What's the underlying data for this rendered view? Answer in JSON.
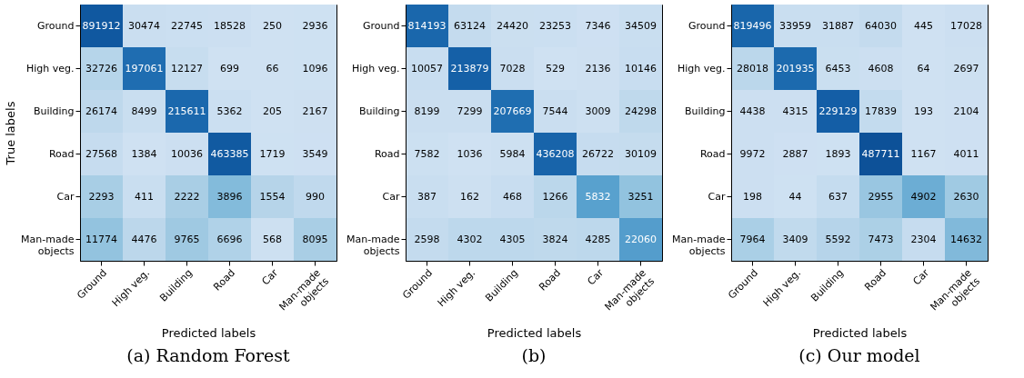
{
  "chart_data": [
    {
      "type": "heatmap",
      "title": "(a) Random Forest",
      "xlabel": "Predicted labels",
      "ylabel": "True labels",
      "data_labels": true,
      "categories": [
        "Ground",
        "High veg.",
        "Building",
        "Road",
        "Car",
        "Man-made objects"
      ],
      "y_categories": [
        "Ground",
        "High veg.",
        "Building",
        "Road",
        "Car",
        "Man-made objects"
      ],
      "cells": [
        [
          891912,
          30474,
          22745,
          18528,
          250,
          2936
        ],
        [
          32726,
          197061,
          12127,
          699,
          66,
          1096
        ],
        [
          26174,
          8499,
          215611,
          5362,
          205,
          2167
        ],
        [
          27568,
          1384,
          10036,
          463385,
          1719,
          3549
        ],
        [
          2293,
          411,
          2222,
          3896,
          1554,
          990
        ],
        [
          11774,
          4476,
          9765,
          6696,
          568,
          8095
        ]
      ]
    },
    {
      "type": "heatmap",
      "title": "(b)",
      "xlabel": "Predicted labels",
      "data_labels": true,
      "categories": [
        "Ground",
        "High veg.",
        "Building",
        "Road",
        "Car",
        "Man-made objects"
      ],
      "y_categories": [
        "Ground",
        "High veg.",
        "Building",
        "Road",
        "Car",
        "Man-made objects"
      ],
      "cells": [
        [
          814193,
          63124,
          24420,
          23253,
          7346,
          34509
        ],
        [
          10057,
          213879,
          7028,
          529,
          2136,
          10146
        ],
        [
          8199,
          7299,
          207669,
          7544,
          3009,
          24298
        ],
        [
          7582,
          1036,
          5984,
          436208,
          26722,
          30109
        ],
        [
          387,
          162,
          468,
          1266,
          5832,
          3251
        ],
        [
          2598,
          4302,
          4305,
          3824,
          4285,
          22060
        ]
      ]
    },
    {
      "type": "heatmap",
      "title": "(c) Our model",
      "xlabel": "Predicted labels",
      "data_labels": true,
      "categories": [
        "Ground",
        "High veg.",
        "Building",
        "Road",
        "Car",
        "Man-made objects"
      ],
      "y_categories": [
        "Ground",
        "High veg.",
        "Building",
        "Road",
        "Car",
        "Man-made objects"
      ],
      "cells": [
        [
          819496,
          33959,
          31887,
          64030,
          445,
          17028
        ],
        [
          28018,
          201935,
          6453,
          4608,
          64,
          2697
        ],
        [
          4438,
          4315,
          229129,
          17839,
          193,
          2104
        ],
        [
          9972,
          2887,
          1893,
          487711,
          1167,
          4011
        ],
        [
          198,
          44,
          637,
          2955,
          4902,
          2630
        ],
        [
          7964,
          3409,
          5592,
          7473,
          2304,
          14632
        ]
      ]
    }
  ]
}
